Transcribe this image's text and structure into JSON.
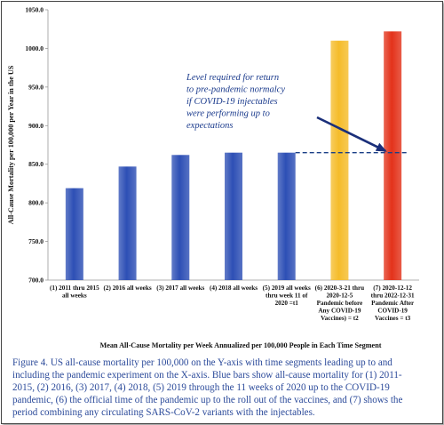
{
  "chart_data": {
    "type": "bar",
    "ylabel": "All-Cause Mortality per 100,000 per Year in the US",
    "xlabel": "Mean All-Cause Mortality per Week Annualized per 100,000 People in Each Time Segment",
    "ylim": [
      700,
      1050
    ],
    "yticks": [
      "700.0",
      "750.0",
      "800.0",
      "850.0",
      "900.0",
      "950.0",
      "1000.0",
      "1050.0"
    ],
    "categories": [
      [
        "(1) 2011 thru 2015",
        "all weeks"
      ],
      [
        "(2) 2016 all weeks"
      ],
      [
        "(3) 2017 all weeks"
      ],
      [
        "(4) 2018 all weeks"
      ],
      [
        "(5) 2019 all weeks",
        "thru week 11 of",
        "2020 =t1"
      ],
      [
        "(6) 2020-3-21 thru",
        "2020-12-5",
        "Pandemic before",
        "Any COVID-19",
        "Vaccines) = t2"
      ],
      [
        "(7) 2020-12-12",
        "thru 2022-12-31",
        "Pandemic After",
        "COVID-19",
        "Vaccines = t3"
      ]
    ],
    "values": [
      819,
      847,
      862,
      865,
      865,
      1010,
      1022
    ],
    "bar_colors": [
      "#2d4fb5",
      "#2d4fb5",
      "#2d4fb5",
      "#2d4fb5",
      "#2d4fb5",
      "#f5bc2a",
      "#e3321a"
    ],
    "reference_level": 865,
    "grid": false,
    "annotation": [
      "Level required for return",
      "to pre-pandemic normalcy",
      "if COVID-19 injectables",
      "were performing up to",
      "expectations"
    ]
  },
  "caption": "Figure 4. US all-cause mortality per 100,000 on the Y-axis with time segments leading up to and\nincluding the pandemic experiment on the X-axis. Blue bars show all-cause mortality for (1) 2011-\n2015, (2) 2016, (3) 2017, (4) 2018, (5) 2019 through the 11 weeks of 2020 up to the COVID-19\npandemic, (6) the official time of the pandemic up to the roll out of the vaccines, and (7) shows the\nperiod combining any circulating SARS-CoV-2 variants with the injectables."
}
